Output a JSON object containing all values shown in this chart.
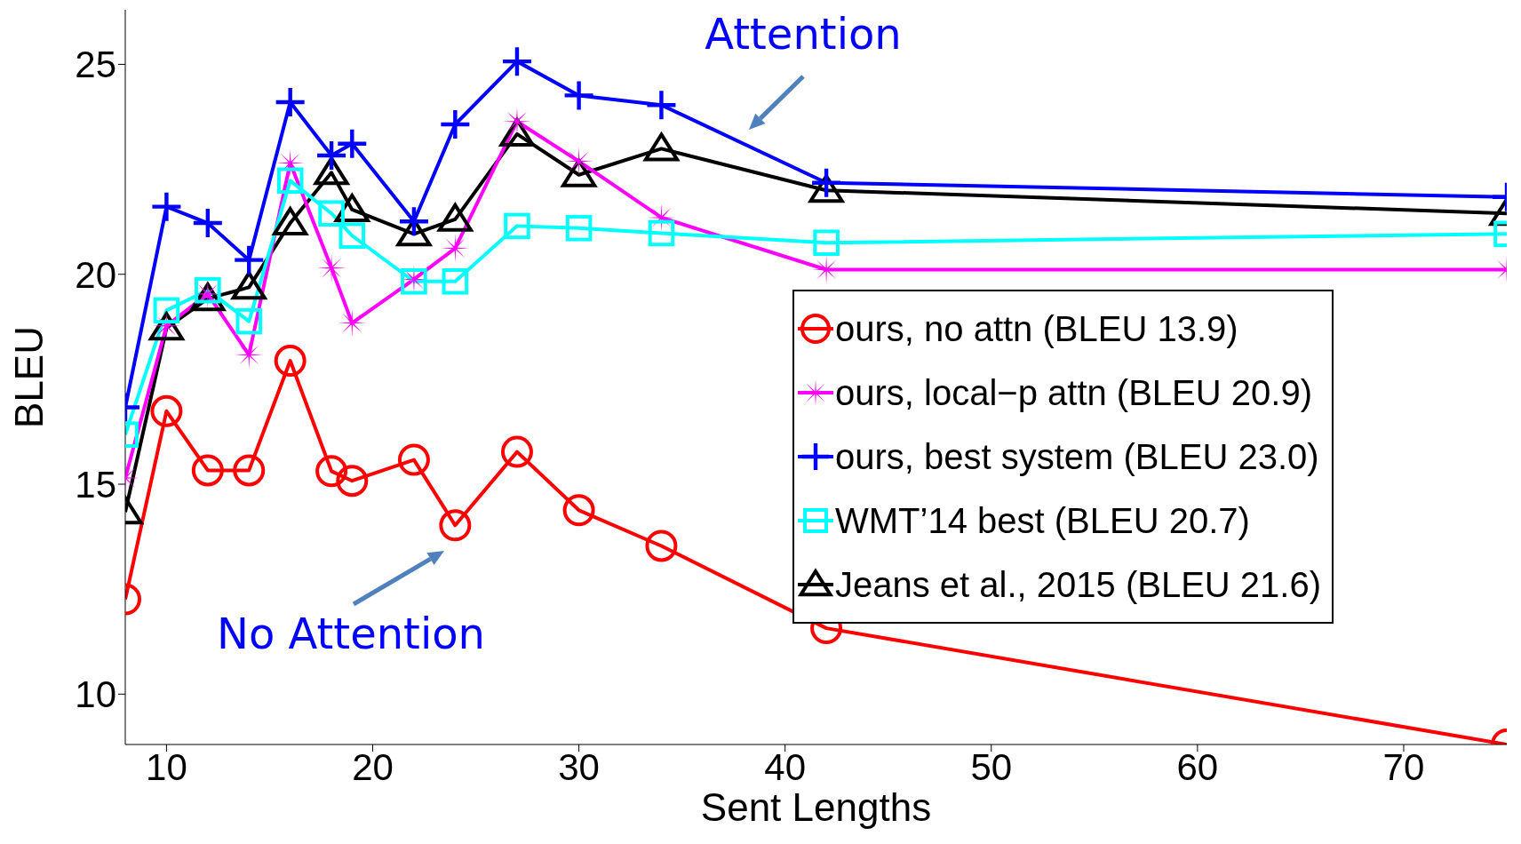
{
  "chart_data": {
    "type": "line",
    "xlabel": "Sent Lengths",
    "ylabel": "BLEU",
    "x": [
      8,
      10,
      12,
      14,
      16,
      18,
      19,
      22,
      24,
      27,
      30,
      34,
      42,
      75
    ],
    "xlim": [
      8,
      75
    ],
    "xticks": [
      10,
      20,
      30,
      40,
      50,
      60,
      70
    ],
    "ylim": [
      8.8,
      26.3
    ],
    "yticks": [
      10,
      15,
      20,
      25
    ],
    "grid": false,
    "legend": "right",
    "line_style": "solid",
    "annotations": [
      "Attention",
      "No Attention"
    ],
    "series": [
      {
        "name": "ours, no attn (BLEU 13.9)",
        "color": "#ff0000",
        "marker": "circle",
        "values": [
          12.26,
          16.74,
          15.33,
          15.33,
          17.94,
          15.31,
          15.08,
          15.58,
          14.02,
          15.77,
          14.38,
          13.53,
          11.57,
          8.8
        ]
      },
      {
        "name": "ours, local−p attn (BLEU 20.9)",
        "color": "#ff00ff",
        "marker": "star",
        "values": [
          15.15,
          18.77,
          19.53,
          18.08,
          22.65,
          20.15,
          18.84,
          19.88,
          20.62,
          23.64,
          22.69,
          21.35,
          20.11,
          20.11
        ]
      },
      {
        "name": "ours, best system (BLEU 23.0)",
        "color": "#0000ff",
        "marker": "cross",
        "values": [
          16.83,
          21.61,
          21.22,
          20.34,
          24.1,
          22.83,
          23.11,
          21.26,
          23.57,
          25.07,
          24.26,
          24.03,
          22.18,
          21.84
        ]
      },
      {
        "name": "WMT’14 best (BLEU 20.7)",
        "color": "#00ffff",
        "marker": "square",
        "values": [
          16.18,
          19.14,
          19.62,
          18.88,
          22.23,
          21.45,
          20.92,
          19.83,
          19.83,
          21.15,
          21.1,
          20.98,
          20.75,
          20.96
        ]
      },
      {
        "name": "Jeans et al., 2015 (BLEU 21.6)",
        "color": "#000000",
        "marker": "triangle",
        "values": [
          14.34,
          18.72,
          19.42,
          19.69,
          21.22,
          22.42,
          21.54,
          20.96,
          21.31,
          23.34,
          22.37,
          22.99,
          22.0,
          21.45
        ]
      }
    ]
  }
}
